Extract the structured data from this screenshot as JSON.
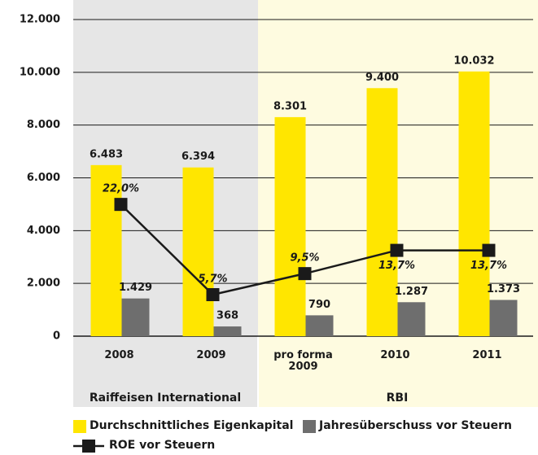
{
  "chart_data": {
    "type": "bar",
    "categories": [
      "2008",
      "2009",
      "pro forma 2009",
      "2010",
      "2011"
    ],
    "groups": [
      "Raiffeisen International",
      "RBI"
    ],
    "series": [
      {
        "name": "Durchschnittliches Eigenkapital",
        "color": "#ffe600",
        "values": [
          6483,
          6394,
          8301,
          9400,
          10032
        ],
        "value_labels": [
          "6.483",
          "6.394",
          "8.301",
          "9.400",
          "10.032"
        ]
      },
      {
        "name": "Jahresüberschuss vor Steuern",
        "color": "#6e6e6e",
        "values": [
          1429,
          368,
          790,
          1287,
          1373
        ],
        "value_labels": [
          "1.429",
          "368",
          "790",
          "1.287",
          "1.373"
        ]
      },
      {
        "name": "ROE vor Steuern",
        "color": "#1a1a1a",
        "type": "line",
        "axis": "y2",
        "values": [
          22.0,
          5.7,
          9.5,
          13.7,
          13.7
        ],
        "value_labels": [
          "22,0%",
          "5,7%",
          "9,5%",
          "13,7%",
          "13,7%"
        ]
      }
    ],
    "ylim": [
      0,
      12000
    ],
    "yticks": [
      0,
      {
        "value": 2000,
        "label": "2.000"
      },
      {
        "value": 4000,
        "label": "4.000"
      },
      {
        "value": 6000,
        "label": "6.000"
      },
      {
        "value": 8000,
        "label": "8.000"
      },
      {
        "value": 10000,
        "label": "10.000"
      },
      {
        "value": 12000,
        "label": "12.000"
      }
    ],
    "y2lim": [
      -1.8,
      55.4
    ]
  }
}
